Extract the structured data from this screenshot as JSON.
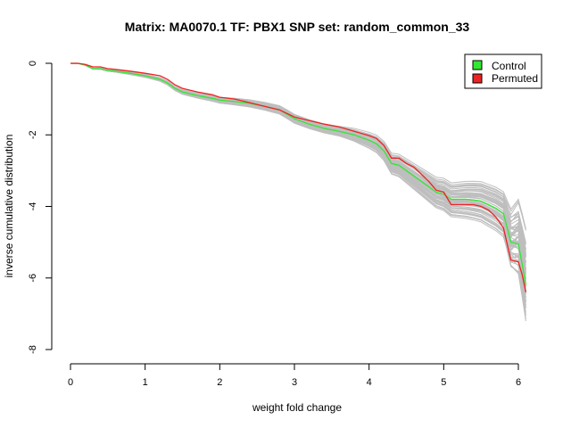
{
  "chart_data": {
    "type": "line",
    "title": "Matrix: MA0070.1 TF: PBX1 SNP set: random_common_33",
    "xlabel": "weight fold change",
    "ylabel": "inverse cumulative distribution",
    "xlim": [
      0,
      6.1
    ],
    "ylim": [
      -8,
      0
    ],
    "x_ticks": [
      0,
      1,
      2,
      3,
      4,
      5,
      6
    ],
    "y_ticks": [
      0,
      -2,
      -4,
      -6,
      -8
    ],
    "legend_position": "top-right",
    "grid": false,
    "colors": {
      "control": "#33e633",
      "permuted": "#ee2222",
      "random": "#bebebe"
    },
    "legend": [
      {
        "label": "Control",
        "color": "#33e633"
      },
      {
        "label": "Permuted",
        "color": "#ee2222"
      }
    ],
    "series": [
      {
        "name": "Permuted",
        "x": [
          0,
          0.1,
          0.2,
          0.3,
          0.4,
          0.5,
          0.6,
          0.8,
          1.0,
          1.2,
          1.3,
          1.4,
          1.5,
          1.7,
          1.9,
          2.0,
          2.2,
          2.4,
          2.6,
          2.8,
          2.9,
          3.0,
          3.2,
          3.4,
          3.6,
          3.8,
          4.0,
          4.1,
          4.2,
          4.3,
          4.4,
          4.5,
          4.6,
          4.7,
          4.8,
          4.9,
          5.0,
          5.1,
          5.2,
          5.3,
          5.4,
          5.5,
          5.6,
          5.7,
          5.8,
          5.9,
          6.0,
          6.05,
          6.1
        ],
        "values": [
          0.0,
          0.0,
          -0.03,
          -0.1,
          -0.1,
          -0.15,
          -0.17,
          -0.22,
          -0.28,
          -0.35,
          -0.45,
          -0.6,
          -0.7,
          -0.8,
          -0.88,
          -0.95,
          -1.0,
          -1.1,
          -1.2,
          -1.3,
          -1.4,
          -1.5,
          -1.6,
          -1.7,
          -1.78,
          -1.9,
          -2.02,
          -2.1,
          -2.3,
          -2.65,
          -2.65,
          -2.8,
          -2.9,
          -3.1,
          -3.3,
          -3.55,
          -3.6,
          -3.95,
          -3.95,
          -3.95,
          -3.95,
          -4.0,
          -4.1,
          -4.3,
          -4.6,
          -5.5,
          -5.55,
          -5.9,
          -6.4
        ]
      },
      {
        "name": "Control",
        "x": [
          0,
          0.1,
          0.2,
          0.3,
          0.4,
          0.5,
          0.6,
          0.8,
          1.0,
          1.2,
          1.3,
          1.4,
          1.5,
          1.7,
          1.9,
          2.0,
          2.2,
          2.4,
          2.6,
          2.8,
          2.9,
          3.0,
          3.2,
          3.4,
          3.6,
          3.8,
          4.0,
          4.1,
          4.2,
          4.3,
          4.4,
          4.5,
          4.6,
          4.7,
          4.8,
          4.9,
          5.0,
          5.1,
          5.2,
          5.3,
          5.4,
          5.5,
          5.6,
          5.7,
          5.8,
          5.9,
          6.0,
          6.05,
          6.1
        ],
        "values": [
          0.0,
          0.0,
          -0.05,
          -0.15,
          -0.15,
          -0.2,
          -0.22,
          -0.28,
          -0.35,
          -0.45,
          -0.55,
          -0.7,
          -0.8,
          -0.9,
          -0.98,
          -1.03,
          -1.07,
          -1.12,
          -1.2,
          -1.3,
          -1.42,
          -1.55,
          -1.7,
          -1.82,
          -1.9,
          -2.0,
          -2.15,
          -2.25,
          -2.45,
          -2.8,
          -2.85,
          -3.0,
          -3.15,
          -3.3,
          -3.45,
          -3.6,
          -3.65,
          -3.8,
          -3.8,
          -3.8,
          -3.82,
          -3.85,
          -3.95,
          -4.05,
          -4.2,
          -5.0,
          -5.05,
          -5.6,
          -6.2
        ]
      }
    ]
  }
}
